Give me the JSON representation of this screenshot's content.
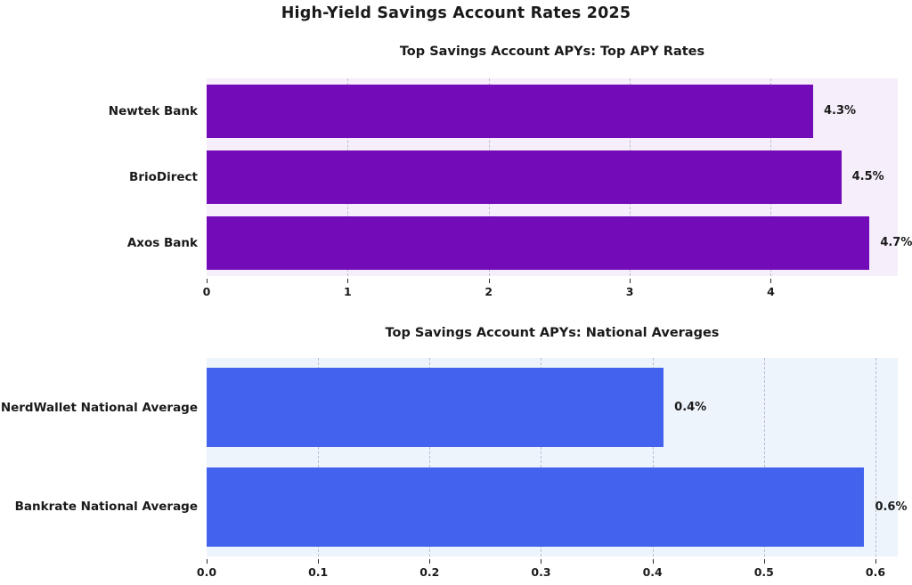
{
  "page_title": "High-Yield Savings Account Rates 2025",
  "chart_data": [
    {
      "type": "bar",
      "orientation": "horizontal",
      "title": "Top Savings Account APYs: Top APY Rates",
      "categories": [
        "Newtek Bank",
        "BrioDirect",
        "Axos Bank"
      ],
      "values": [
        4.3,
        4.5,
        4.7
      ],
      "value_labels": [
        "4.3%",
        "4.5%",
        "4.7%"
      ],
      "xlabel": "",
      "ylabel": "",
      "xlim": [
        0,
        4.9
      ],
      "xticks": [
        0,
        1,
        2,
        3,
        4
      ],
      "xtick_labels": [
        "0",
        "1",
        "2",
        "3",
        "4"
      ],
      "grid": "vertical-dashed",
      "legend": false,
      "bar_color": "#730bb9",
      "plot_bg_color": "#f6eefa",
      "text_color": "#1a1a1a"
    },
    {
      "type": "bar",
      "orientation": "horizontal",
      "title": "Top Savings Account APYs: National Averages",
      "categories": [
        "NerdWallet National Average",
        "Bankrate National Average"
      ],
      "values": [
        0.41,
        0.59
      ],
      "value_labels": [
        "0.4%",
        "0.6%"
      ],
      "xlabel": "",
      "ylabel": "",
      "xlim": [
        0,
        0.62
      ],
      "xticks": [
        0.0,
        0.1,
        0.2,
        0.3,
        0.4,
        0.5,
        0.6
      ],
      "xtick_labels": [
        "0.0",
        "0.1",
        "0.2",
        "0.3",
        "0.4",
        "0.5",
        "0.6"
      ],
      "grid": "vertical-dashed",
      "legend": false,
      "bar_color": "#4363ee",
      "plot_bg_color": "#edf4fb",
      "text_color": "#1a1a1a"
    }
  ]
}
